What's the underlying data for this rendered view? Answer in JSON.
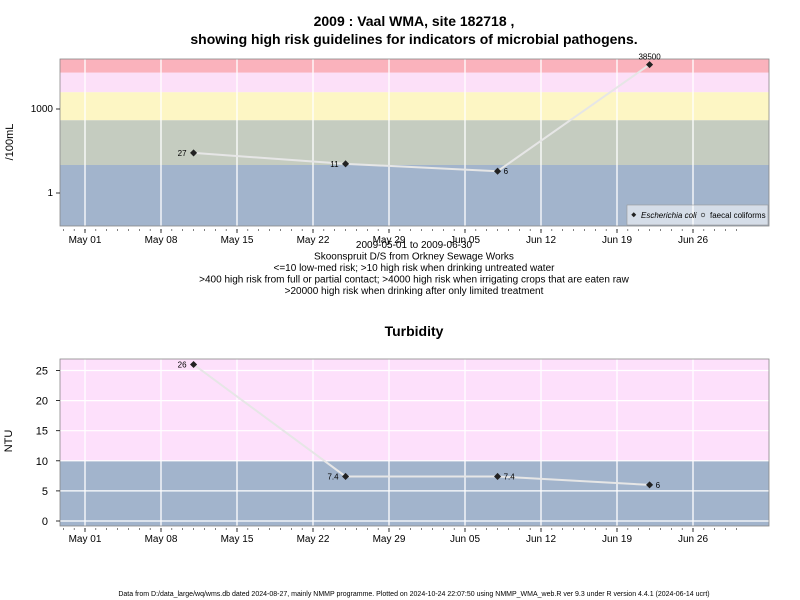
{
  "chart_data": [
    {
      "type": "line",
      "title": "2009 : Vaal WMA, site 182718 ,",
      "subtitle": "showing high risk guidelines for indicators of microbial pathogens.",
      "ylabel": "/100mL",
      "yscale": "log",
      "x_ticks": [
        "May 01",
        "May 08",
        "May 15",
        "May 22",
        "May 29",
        "Jun 05",
        "Jun 12",
        "Jun 19",
        "Jun 26"
      ],
      "y_ticks": [
        "1",
        "1000"
      ],
      "caption_lines": [
        "2009-05-01 to 2009-06-30",
        "Skoonspruit D/S from Orkney Sewage Works",
        "<=10 low-med risk; >10 high risk when drinking untreated water",
        ">400 high risk from full or partial contact; >4000 high risk when irrigating crops that are eaten raw",
        ">20000 high risk when drinking after only limited treatment"
      ],
      "series": [
        {
          "name": "Escherichia coli",
          "x": [
            "2009-05-11",
            "2009-05-25",
            "2009-06-08",
            "2009-06-22"
          ],
          "y": [
            27,
            11,
            6,
            38500
          ],
          "labels": [
            "27",
            "11",
            "6",
            "38500"
          ]
        }
      ],
      "legend": [
        "Escherichia coli",
        "faecal coliforms"
      ],
      "legend_position": "bottom-right",
      "risk_bands": [
        {
          "max": 10,
          "color": "#a2b4cc"
        },
        {
          "max": 400,
          "color": "#c5ccc0"
        },
        {
          "max": 4000,
          "color": "#fdf6c4"
        },
        {
          "max": 20000,
          "color": "#fce0f8"
        },
        {
          "max": 50000,
          "color": "#fab2bc"
        }
      ]
    },
    {
      "type": "line",
      "title": "Turbidity",
      "ylabel": "NTU",
      "x_ticks": [
        "May 01",
        "May 08",
        "May 15",
        "May 22",
        "May 29",
        "Jun 05",
        "Jun 12",
        "Jun 19",
        "Jun 26"
      ],
      "y_ticks": [
        "0",
        "5",
        "10",
        "15",
        "20",
        "25"
      ],
      "ylim": [
        -1,
        27
      ],
      "series": [
        {
          "x": [
            "2009-05-11",
            "2009-05-25",
            "2009-06-08",
            "2009-06-22"
          ],
          "y": [
            26,
            7.4,
            7.4,
            6
          ],
          "labels": [
            "26",
            "7.4",
            "7.4",
            "6"
          ]
        }
      ],
      "risk_bands": [
        {
          "max": 10,
          "color": "#a2b4cc"
        },
        {
          "max": 27,
          "color": "#fde0fb"
        }
      ]
    }
  ],
  "footer": "Data from D:/data_large/wq/wms.db dated 2024-08-27, mainly NMMP programme. Plotted on 2024-10-24 22:07:50 using NMMP_WMA_web.R ver 9.3 under R version 4.4.1 (2024-06-14 ucrt)"
}
